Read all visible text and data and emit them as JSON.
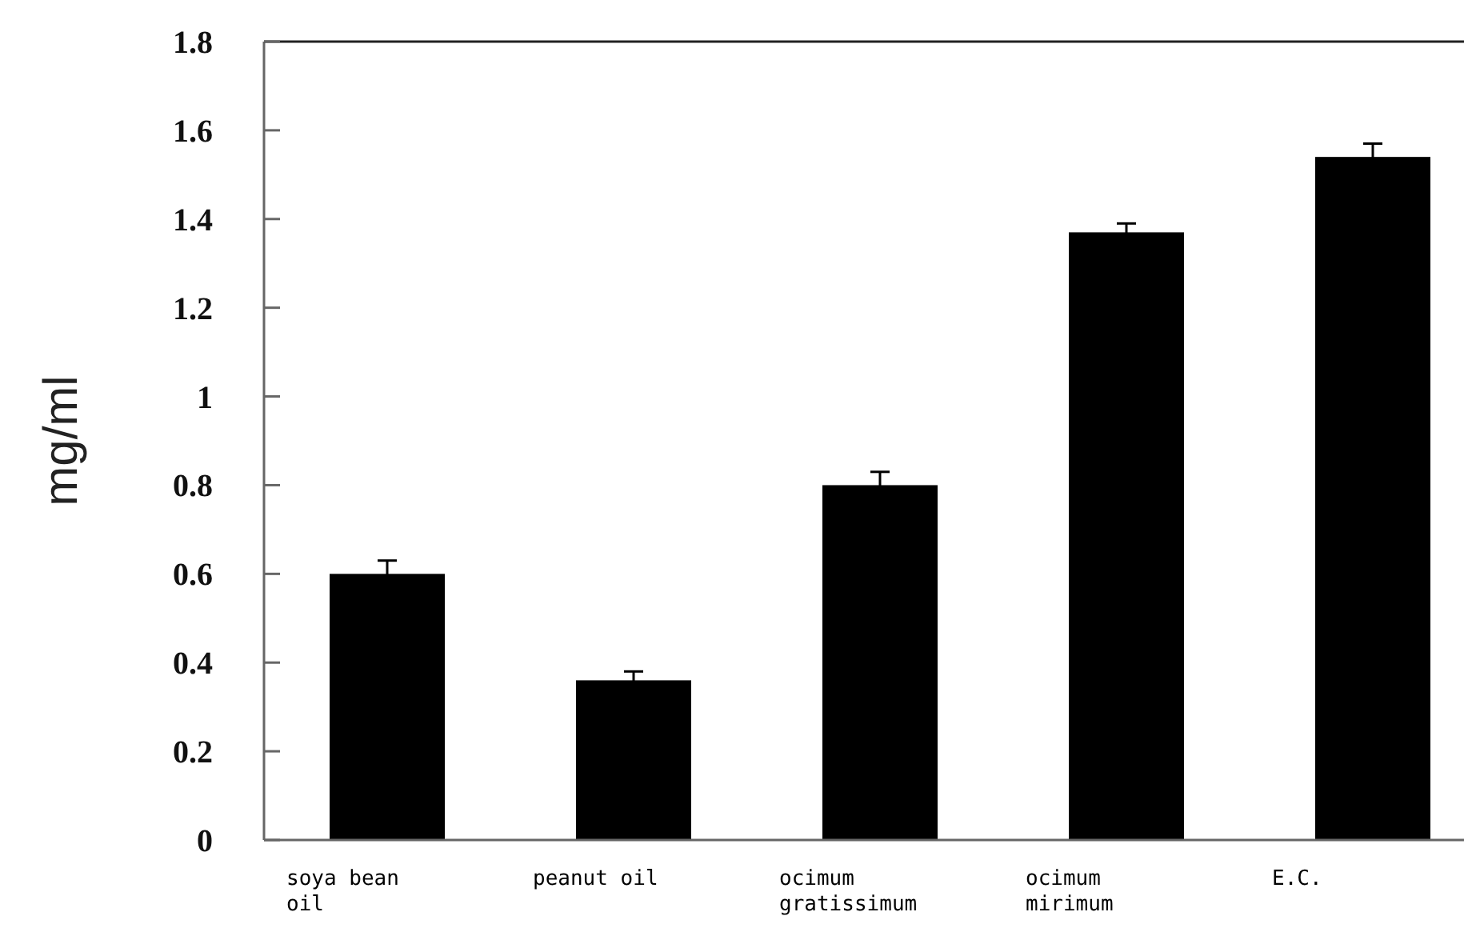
{
  "chart_data": {
    "type": "bar",
    "ylabel": "mg/ml",
    "categories": [
      "soya bean oil",
      "peanut oil",
      "ocimum gratissimum",
      "ocimum mirimum",
      "E.C."
    ],
    "values": [
      0.6,
      0.36,
      0.8,
      1.37,
      1.54
    ],
    "errors": [
      0.03,
      0.02,
      0.03,
      0.02,
      0.03
    ],
    "color": "#000000",
    "ylim": [
      0,
      1.8
    ],
    "yticks": [
      0,
      0.2,
      0.4,
      0.6,
      0.8,
      1,
      1.2,
      1.4,
      1.6,
      1.8
    ],
    "grid": false
  }
}
